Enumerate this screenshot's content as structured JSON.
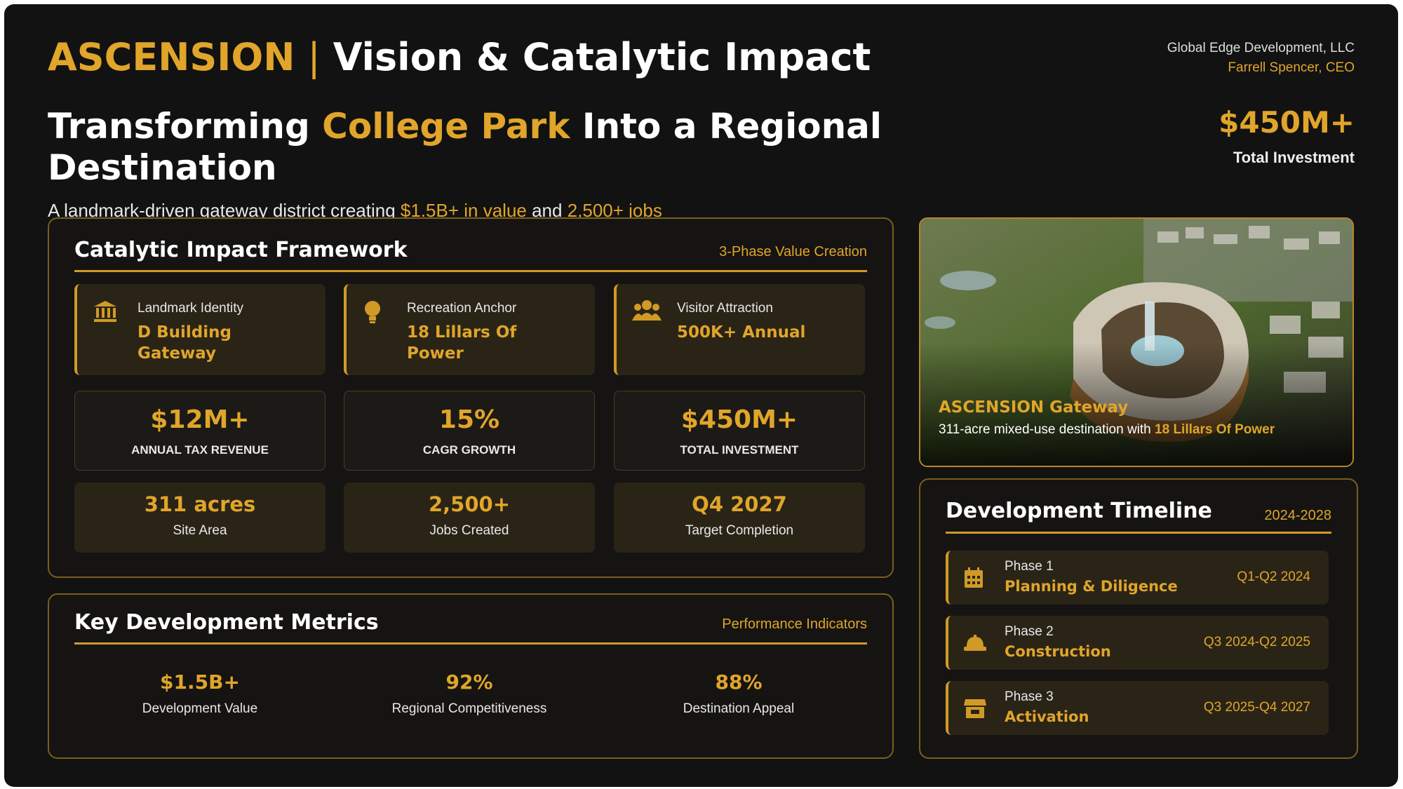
{
  "header": {
    "brand": "ASCENSION",
    "title": "Vision & Catalytic Impact",
    "company": "Global Edge Development, LLC",
    "executive": "Farrell Spencer, CEO"
  },
  "headline": {
    "parts": [
      "Transforming ",
      "College Park",
      " Into a Regional",
      "Destination"
    ]
  },
  "subtitle": {
    "parts": [
      "A landmark-driven gateway district creating ",
      "$1.5B+ in value",
      " and ",
      "2,500+ jobs"
    ]
  },
  "investment": {
    "value": "$450M+",
    "label": "Total Investment"
  },
  "framework": {
    "title": "Catalytic Impact Framework",
    "tag": "3-Phase Value Creation",
    "pillars": [
      {
        "label": "Landmark Identity",
        "value": "D Building Gateway"
      },
      {
        "label": "Recreation Anchor",
        "value": "18 Lillars Of Power"
      },
      {
        "label": "Visitor Attraction",
        "value": "500K+ Annual"
      }
    ],
    "stats": [
      {
        "value": "$12M+",
        "label": "ANNUAL TAX REVENUE"
      },
      {
        "value": "15%",
        "label": "CAGR GROWTH"
      },
      {
        "value": "$450M+",
        "label": "TOTAL INVESTMENT"
      }
    ],
    "facts": [
      {
        "value": "311 acres",
        "label": "Site Area"
      },
      {
        "value": "2,500+",
        "label": "Jobs Created"
      },
      {
        "value": "Q4 2027",
        "label": "Target Completion"
      }
    ]
  },
  "metrics": {
    "title": "Key Development Metrics",
    "tag": "Performance Indicators",
    "items": [
      {
        "value": "$1.5B+",
        "label": "Development Value"
      },
      {
        "value": "92%",
        "label": "Regional Competitiveness"
      },
      {
        "value": "88%",
        "label": "Destination Appeal"
      }
    ]
  },
  "image": {
    "title": "ASCENSION Gateway",
    "caption": [
      "311-acre mixed-use destination with ",
      "18 Lillars Of Power"
    ]
  },
  "timeline": {
    "title": "Development Timeline",
    "range": "2024-2028",
    "phases": [
      {
        "phase": "Phase 1",
        "name": "Planning & Diligence",
        "dates": "Q1-Q2 2024"
      },
      {
        "phase": "Phase 2",
        "name": "Construction",
        "dates": "Q3 2024-Q2 2025"
      },
      {
        "phase": "Phase 3",
        "name": "Activation",
        "dates": "Q3 2025-Q4 2027"
      }
    ]
  }
}
